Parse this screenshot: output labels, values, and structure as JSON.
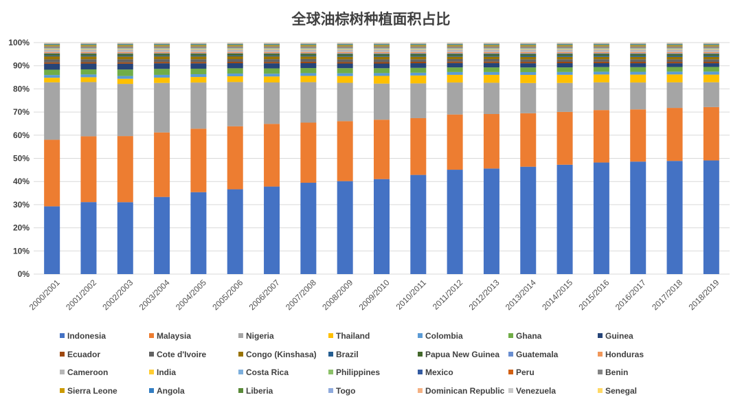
{
  "chart_data": {
    "type": "bar",
    "stacked": true,
    "percent_stacked": true,
    "title": "全球油棕树种植面积占比",
    "xlabel": "",
    "ylabel": "",
    "ylim": [
      0,
      100
    ],
    "y_tick_labels": [
      "0%",
      "10%",
      "20%",
      "30%",
      "40%",
      "50%",
      "60%",
      "70%",
      "80%",
      "90%",
      "100%"
    ],
    "grid": "horizontal",
    "legend_position": "bottom",
    "categories": [
      "2000/2001",
      "2001/2002",
      "2002/2003",
      "2003/2004",
      "2004/2005",
      "2005/2006",
      "2006/2007",
      "2007/2008",
      "2008/2009",
      "2009/2010",
      "2010/2011",
      "2011/2012",
      "2012/2013",
      "2013/2014",
      "2014/2015",
      "2015/2016",
      "2016/2017",
      "2017/2018",
      "2018/2019"
    ],
    "series": [
      {
        "name": "Indonesia",
        "color": "#4472c4",
        "values": [
          29.5,
          31.2,
          31,
          33.5,
          35.5,
          37,
          38,
          39.5,
          40,
          40.8,
          42.8,
          45,
          45.5,
          46.2,
          47.2,
          48.3,
          48.5,
          48.7,
          49
        ]
      },
      {
        "name": "Malaysia",
        "color": "#ed7d31",
        "values": [
          29,
          28.5,
          28.5,
          28,
          27.5,
          27.5,
          27.2,
          26,
          25.8,
          25.5,
          24.5,
          23.8,
          23.5,
          23,
          22.8,
          22.7,
          22.5,
          22.8,
          23
        ]
      },
      {
        "name": "Nigeria",
        "color": "#a5a5a5",
        "values": [
          25,
          23.5,
          22.5,
          21.5,
          20,
          19.3,
          18,
          17.5,
          16.5,
          15.5,
          15,
          13.8,
          13.5,
          13,
          12.5,
          12,
          11.6,
          11,
          10.7
        ]
      },
      {
        "name": "Thailand",
        "color": "#ffc000",
        "values": [
          2,
          2.1,
          2.2,
          2.3,
          2.4,
          2.5,
          2.6,
          2.7,
          2.9,
          3.3,
          3.4,
          3.3,
          3.4,
          3.5,
          3.5,
          3.4,
          3.4,
          3.4,
          3.3
        ]
      },
      {
        "name": "Colombia",
        "color": "#5b9bd5",
        "values": [
          1.2,
          1.2,
          1.2,
          1.2,
          1.2,
          1.2,
          1.2,
          1.2,
          1.2,
          1.2,
          1.2,
          1.2,
          1.2,
          1.2,
          1.2,
          1.2,
          1.2,
          1.2,
          1.3
        ]
      },
      {
        "name": "Ghana",
        "color": "#70ad47",
        "values": [
          2.3,
          2.2,
          2.8,
          2.6,
          2.4,
          2.3,
          2.3,
          2.2,
          2.2,
          2.1,
          2.1,
          2,
          2,
          2,
          2,
          2,
          2,
          2,
          2
        ]
      },
      {
        "name": "Guinea",
        "color": "#264478",
        "values": [
          2.6,
          2.5,
          2.5,
          2.4,
          2.3,
          2.2,
          2.2,
          2.1,
          2,
          2,
          2,
          1.9,
          1.9,
          1.8,
          1.8,
          1.7,
          1.7,
          1.6,
          1.6
        ]
      },
      {
        "name": "Ecuador",
        "color": "#9e480e",
        "values": [
          0.6,
          0.6,
          0.6,
          0.6,
          0.6,
          0.6,
          0.6,
          0.6,
          0.6,
          0.6,
          0.6,
          0.6,
          0.6,
          0.6,
          0.6,
          0.6,
          0.6,
          0.6,
          0.6
        ]
      },
      {
        "name": "Cote d'Ivoire",
        "color": "#636363",
        "values": [
          1.3,
          1.3,
          1.3,
          1.2,
          1.2,
          1.2,
          1.2,
          1.2,
          1.2,
          1.2,
          1.1,
          1.1,
          1.1,
          1.1,
          1.1,
          1.1,
          1.1,
          1.1,
          1.1
        ]
      },
      {
        "name": "Congo (Kinshasa)",
        "color": "#997300",
        "values": [
          1.3,
          1.2,
          1.2,
          1.2,
          1.2,
          1.2,
          1.2,
          1.1,
          1.1,
          1.1,
          1.1,
          1,
          1,
          1,
          1,
          1,
          1,
          1,
          1
        ]
      },
      {
        "name": "Brazil",
        "color": "#255e91",
        "values": [
          0.4,
          0.4,
          0.4,
          0.4,
          0.4,
          0.4,
          0.4,
          0.4,
          0.4,
          0.4,
          0.4,
          0.4,
          0.4,
          0.5,
          0.5,
          0.5,
          0.5,
          0.5,
          0.5
        ]
      },
      {
        "name": "Papua New Guinea",
        "color": "#43682b",
        "values": [
          0.8,
          0.8,
          0.8,
          0.8,
          0.8,
          0.8,
          0.8,
          0.8,
          0.8,
          0.8,
          0.8,
          0.8,
          0.8,
          0.8,
          0.8,
          0.8,
          0.8,
          0.8,
          0.8
        ]
      },
      {
        "name": "Guatemala",
        "color": "#698ed0",
        "values": [
          0.2,
          0.2,
          0.2,
          0.2,
          0.2,
          0.2,
          0.2,
          0.2,
          0.3,
          0.3,
          0.3,
          0.3,
          0.3,
          0.3,
          0.3,
          0.3,
          0.3,
          0.3,
          0.3
        ]
      },
      {
        "name": "Honduras",
        "color": "#f1975a",
        "values": [
          0.5,
          0.5,
          0.5,
          0.5,
          0.5,
          0.5,
          0.5,
          0.5,
          0.5,
          0.5,
          0.5,
          0.5,
          0.5,
          0.5,
          0.5,
          0.5,
          0.5,
          0.5,
          0.5
        ]
      },
      {
        "name": "Cameroon",
        "color": "#b7b7b7",
        "values": [
          1.2,
          1.2,
          1.2,
          1.2,
          1.2,
          1.2,
          1.2,
          1.2,
          1.2,
          1.2,
          1.2,
          1.2,
          1.2,
          1.2,
          1.2,
          1.2,
          1.2,
          1.2,
          1.2
        ]
      },
      {
        "name": "India",
        "color": "#ffcd33",
        "values": [
          0.2,
          0.2,
          0.2,
          0.2,
          0.2,
          0.2,
          0.2,
          0.2,
          0.2,
          0.2,
          0.2,
          0.2,
          0.2,
          0.2,
          0.2,
          0.2,
          0.2,
          0.2,
          0.2
        ]
      },
      {
        "name": "Costa Rica",
        "color": "#7cafdd",
        "values": [
          0.2,
          0.2,
          0.2,
          0.2,
          0.2,
          0.2,
          0.2,
          0.2,
          0.2,
          0.2,
          0.2,
          0.2,
          0.2,
          0.2,
          0.2,
          0.2,
          0.2,
          0.2,
          0.2
        ]
      },
      {
        "name": "Philippines",
        "color": "#8cc168",
        "values": [
          0.1,
          0.1,
          0.1,
          0.1,
          0.1,
          0.1,
          0.1,
          0.1,
          0.1,
          0.1,
          0.1,
          0.1,
          0.1,
          0.1,
          0.1,
          0.1,
          0.1,
          0.1,
          0.1
        ]
      },
      {
        "name": "Mexico",
        "color": "#335aa1",
        "values": [
          0.1,
          0.1,
          0.1,
          0.1,
          0.1,
          0.1,
          0.1,
          0.1,
          0.1,
          0.1,
          0.1,
          0.1,
          0.1,
          0.1,
          0.1,
          0.1,
          0.1,
          0.1,
          0.1
        ]
      },
      {
        "name": "Peru",
        "color": "#d26012",
        "values": [
          0.1,
          0.1,
          0.1,
          0.1,
          0.1,
          0.1,
          0.1,
          0.1,
          0.1,
          0.1,
          0.1,
          0.1,
          0.1,
          0.1,
          0.1,
          0.1,
          0.1,
          0.1,
          0.1
        ]
      },
      {
        "name": "Benin",
        "color": "#848484",
        "values": [
          0.6,
          0.6,
          0.6,
          0.6,
          0.6,
          0.6,
          0.6,
          0.6,
          0.6,
          0.6,
          0.6,
          0.6,
          0.6,
          0.6,
          0.6,
          0.6,
          0.6,
          0.6,
          0.6
        ]
      },
      {
        "name": "Sierra Leone",
        "color": "#cc9a00",
        "values": [
          0.5,
          0.5,
          0.5,
          0.5,
          0.5,
          0.5,
          0.5,
          0.5,
          0.5,
          0.5,
          0.5,
          0.5,
          0.5,
          0.5,
          0.5,
          0.5,
          0.5,
          0.5,
          0.5
        ]
      },
      {
        "name": "Angola",
        "color": "#327dc2",
        "values": [
          0.3,
          0.3,
          0.3,
          0.3,
          0.3,
          0.3,
          0.3,
          0.3,
          0.3,
          0.3,
          0.3,
          0.3,
          0.3,
          0.3,
          0.3,
          0.3,
          0.3,
          0.3,
          0.3
        ]
      },
      {
        "name": "Liberia",
        "color": "#5a8a39",
        "values": [
          0.2,
          0.2,
          0.2,
          0.2,
          0.2,
          0.2,
          0.2,
          0.2,
          0.2,
          0.2,
          0.2,
          0.2,
          0.2,
          0.2,
          0.2,
          0.2,
          0.2,
          0.2,
          0.2
        ]
      },
      {
        "name": "Togo",
        "color": "#8faadc",
        "values": [
          0.2,
          0.2,
          0.2,
          0.2,
          0.2,
          0.2,
          0.2,
          0.2,
          0.2,
          0.2,
          0.2,
          0.2,
          0.2,
          0.2,
          0.2,
          0.2,
          0.2,
          0.2,
          0.2
        ]
      },
      {
        "name": "Dominican Republic",
        "color": "#f4b183",
        "values": [
          0.1,
          0.1,
          0.1,
          0.1,
          0.1,
          0.1,
          0.1,
          0.1,
          0.1,
          0.1,
          0.1,
          0.1,
          0.1,
          0.1,
          0.1,
          0.1,
          0.1,
          0.1,
          0.1
        ]
      },
      {
        "name": "Venezuela",
        "color": "#c9c9c9",
        "values": [
          0.2,
          0.2,
          0.2,
          0.2,
          0.2,
          0.2,
          0.2,
          0.2,
          0.2,
          0.2,
          0.2,
          0.2,
          0.2,
          0.2,
          0.2,
          0.2,
          0.2,
          0.2,
          0.2
        ]
      },
      {
        "name": "Senegal",
        "color": "#ffd966",
        "values": [
          0.1,
          0.1,
          0.1,
          0.1,
          0.1,
          0.1,
          0.1,
          0.1,
          0.1,
          0.1,
          0.1,
          0.1,
          0.1,
          0.1,
          0.1,
          0.1,
          0.1,
          0.1,
          0.1
        ]
      }
    ]
  }
}
